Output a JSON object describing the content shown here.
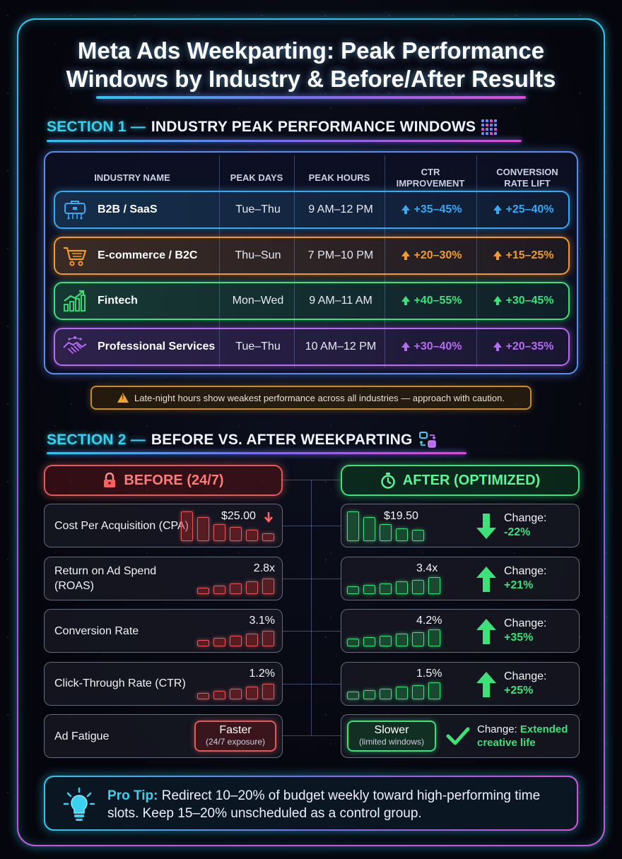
{
  "title": "Meta Ads Weekparting: Peak Performance Windows by Industry & Before/After Results",
  "title_line1": "Meta Ads Weekparting: Peak Performance",
  "title_line2": "Windows by Industry & Before/After Results",
  "section1": {
    "num": "SECTION 1 —",
    "rest": "INDUSTRY PEAK PERFORMANCE WINDOWS",
    "icon": "grid-icon",
    "headers": {
      "industry": "INDUSTRY NAME",
      "days": "PEAK DAYS",
      "hours": "PEAK HOURS",
      "ctr": "CTR IMPROVEMENT",
      "conv": "CONVERSION RATE LIFT"
    },
    "rows": [
      {
        "icon": "briefcase-circuit-icon",
        "name": "B2B / SaaS",
        "days": "Tue–Thu",
        "hours": "9 AM–12 PM",
        "ctr": "+35–45%",
        "conv": "+25–40%",
        "color": "#3aa8f0"
      },
      {
        "icon": "shopping-cart-icon",
        "name": "E-commerce / B2C",
        "days": "Thu–Sun",
        "hours": "7 PM–10 PM",
        "ctr": "+20–30%",
        "conv": "+15–25%",
        "color": "#f09a30"
      },
      {
        "icon": "growth-chart-icon",
        "name": "Fintech",
        "days": "Mon–Wed",
        "hours": "9 AM–11 AM",
        "ctr": "+40–55%",
        "conv": "+30–45%",
        "color": "#3ee07a"
      },
      {
        "icon": "handshake-icon",
        "name": "Professional Services",
        "days": "Tue–Thu",
        "hours": "10 AM–12 PM",
        "ctr": "+30–40%",
        "conv": "+20–35%",
        "color": "#b46cf0"
      }
    ],
    "warning": "Late-night hours show weakest performance across all industries — approach with caution."
  },
  "section2": {
    "num": "SECTION 2 —",
    "rest": "BEFORE VS. AFTER WEEKPARTING",
    "icon": "swap-icon",
    "before_label": "BEFORE (24/7)",
    "after_label": "AFTER (OPTIMIZED)",
    "metrics": [
      {
        "label": "Cost Per Acquisition (CPA)",
        "before": "$25.00",
        "after": "$19.50",
        "change_label": "Change:",
        "change": "-22%",
        "direction": "down"
      },
      {
        "label": "Return on Ad Spend (ROAS)",
        "before": "2.8x",
        "after": "3.4x",
        "change_label": "Change:",
        "change": "+21%",
        "direction": "up"
      },
      {
        "label": "Conversion Rate",
        "before": "3.1%",
        "after": "4.2%",
        "change_label": "Change:",
        "change": "+35%",
        "direction": "up"
      },
      {
        "label": "Click-Through Rate (CTR)",
        "before": "1.2%",
        "after": "1.5%",
        "change_label": "Change:",
        "change": "+25%",
        "direction": "up"
      }
    ],
    "fatigue": {
      "label": "Ad Fatigue",
      "before_main": "Faster",
      "before_sub": "(24/7 exposure)",
      "after_main": "Slower",
      "after_sub": "(limited windows)",
      "change_label": "Change:",
      "change": "Extended creative life"
    }
  },
  "tip": {
    "label": "Pro Tip:",
    "text": "Redirect 10–20% of budget weekly toward high-performing time slots. Keep 15–20% unscheduled as a control group."
  },
  "colors": {
    "cyan": "#2fc6e8",
    "red": "#e25a5a",
    "green": "#3ee07a",
    "orange": "#f09a30",
    "purple": "#b46cf0"
  }
}
